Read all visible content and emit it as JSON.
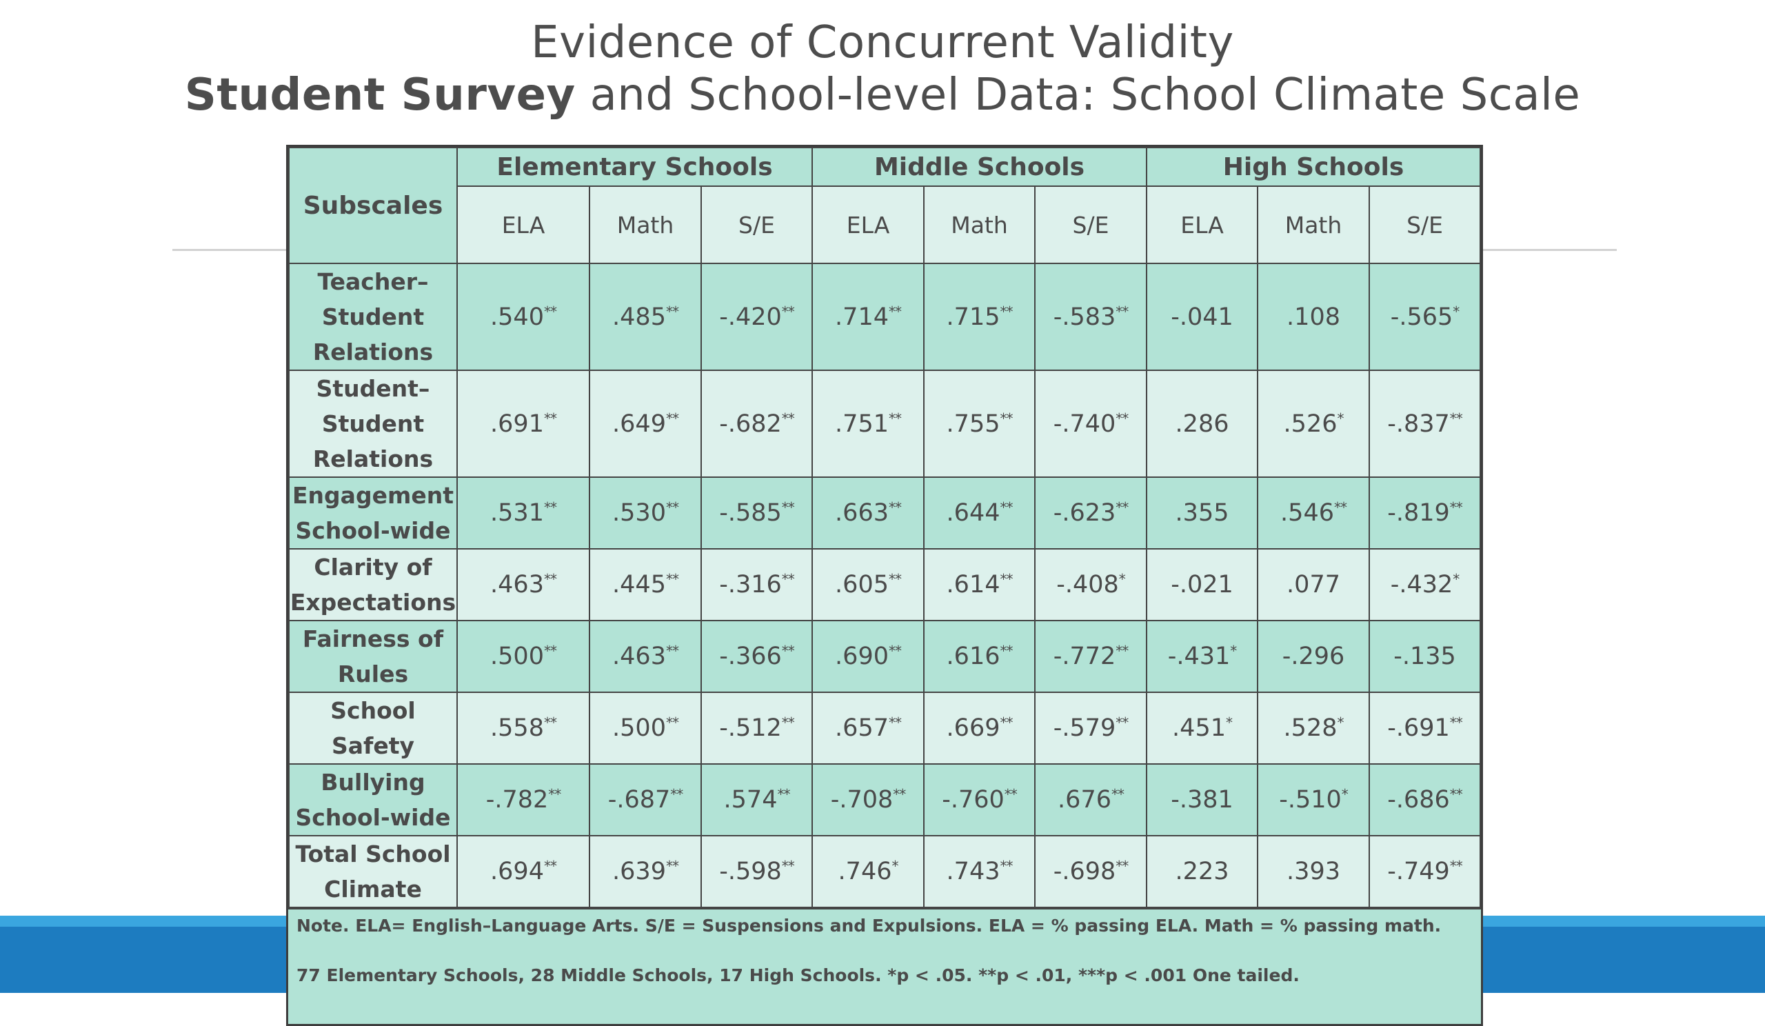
{
  "title": {
    "line1": "Evidence of Concurrent Validity",
    "line2_bold": "Student Survey",
    "line2_rest": " and School-level Data: School Climate Scale"
  },
  "table": {
    "corner_header": "Subscales",
    "groups": [
      "Elementary Schools",
      "Middle Schools",
      "High Schools"
    ],
    "subheaders": [
      "ELA",
      "Math",
      "S/E",
      "ELA",
      "Math",
      "S/E",
      "ELA",
      "Math",
      "S/E"
    ],
    "rows": [
      {
        "label": "Teacher–Student Relations",
        "label_lines": [
          "Teacher–",
          "Student",
          "Relations"
        ],
        "values": [
          ".540",
          ".485",
          "-.420",
          ".714",
          ".715",
          "-.583",
          "-.041",
          ".108",
          "-.565"
        ],
        "sig": [
          "**",
          "**",
          "**",
          "**",
          "**",
          "**",
          "",
          "",
          "*"
        ]
      },
      {
        "label": "Student–Student Relations",
        "label_lines": [
          "Student–",
          "Student",
          "Relations"
        ],
        "values": [
          ".691",
          ".649",
          "-.682",
          ".751",
          ".755",
          "-.740",
          ".286",
          ".526",
          "-.837"
        ],
        "sig": [
          "**",
          "**",
          "**",
          "**",
          "**",
          "**",
          "",
          "*",
          "**"
        ]
      },
      {
        "label": "Engagement School-wide",
        "label_lines": [
          "Engagement",
          "School-wide"
        ],
        "values": [
          ".531",
          ".530",
          "-.585",
          ".663",
          ".644",
          "-.623",
          ".355",
          ".546",
          "-.819"
        ],
        "sig": [
          "**",
          "**",
          "**",
          "**",
          "**",
          "**",
          "",
          "**",
          "**"
        ]
      },
      {
        "label": "Clarity of Expectations",
        "label_lines": [
          "Clarity of",
          "Expectations"
        ],
        "values": [
          ".463",
          ".445",
          "-.316",
          ".605",
          ".614",
          "-.408",
          "-.021",
          ".077",
          "-.432"
        ],
        "sig": [
          "**",
          "**",
          "**",
          "**",
          "**",
          "*",
          "",
          "",
          "*"
        ]
      },
      {
        "label": "Fairness of Rules",
        "label_lines": [
          "Fairness of",
          "Rules"
        ],
        "values": [
          ".500",
          ".463",
          "-.366",
          ".690",
          ".616",
          "-.772",
          "-.431",
          "-.296",
          "-.135"
        ],
        "sig": [
          "**",
          "**",
          "**",
          "**",
          "**",
          "**",
          "*",
          "",
          ""
        ]
      },
      {
        "label": "School Safety",
        "label_lines": [
          "School Safety"
        ],
        "values": [
          ".558",
          ".500",
          "-.512",
          ".657",
          ".669",
          "-.579",
          ".451",
          ".528",
          "-.691"
        ],
        "sig": [
          "**",
          "**",
          "**",
          "**",
          "**",
          "**",
          "*",
          "*",
          "**"
        ]
      },
      {
        "label": "Bullying School-wide",
        "label_lines": [
          "Bullying",
          "School-wide"
        ],
        "values": [
          "-.782",
          "-.687",
          ".574",
          "-.708",
          "-.760",
          ".676",
          "-.381",
          "-.510",
          "-.686"
        ],
        "sig": [
          "**",
          "**",
          "**",
          "**",
          "**",
          "**",
          "",
          "*",
          "**"
        ]
      },
      {
        "label": "Total School Climate",
        "label_lines": [
          "Total School",
          "Climate"
        ],
        "values": [
          ".694",
          ".639",
          "-.598",
          ".746",
          ".743",
          "-.698",
          ".223",
          ".393",
          "-.749"
        ],
        "sig": [
          "**",
          "**",
          "**",
          "*",
          "**",
          "**",
          "",
          "",
          "**"
        ]
      }
    ],
    "note_line1": "Note. ELA= English–Language Arts. S/E = Suspensions and Expulsions. ELA = % passing ELA. Math = % passing math.",
    "note_line2": "77 Elementary Schools, 28 Middle Schools,  17 High Schools. *p < .05. **p < .01, ***p < .001 One tailed."
  },
  "colors": {
    "table_dark": "#b2e3d6",
    "table_light": "#ddf1ec",
    "band_light": "#3aa6df",
    "band_dark": "#1d7cc0"
  }
}
